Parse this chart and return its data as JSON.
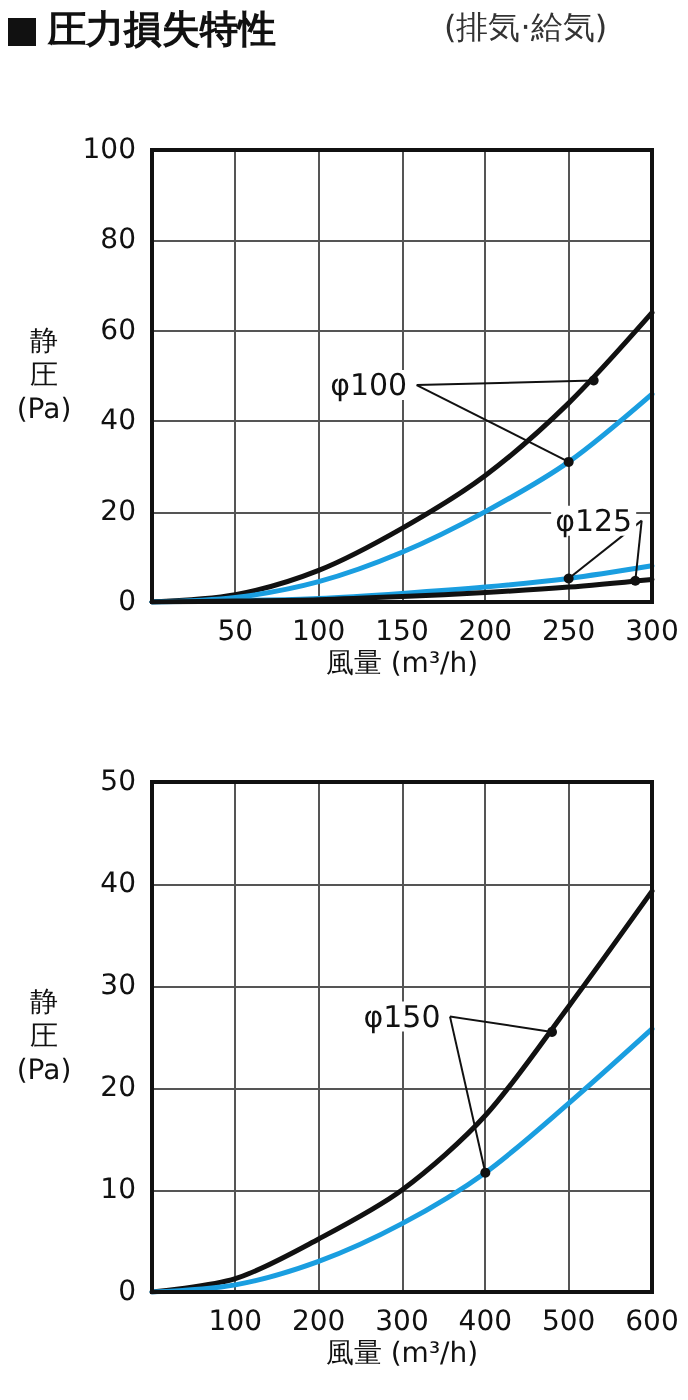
{
  "chart_data": [
    {
      "type": "line",
      "title": "圧力損失特性",
      "subtitle": "(排気·給気)",
      "xlabel": "風量 (m³/h)",
      "ylabel": "静圧(Pa)",
      "x": [
        0,
        50,
        100,
        150,
        200,
        250,
        300
      ],
      "series": [
        {
          "color": "#111111",
          "values": [
            0,
            1.6,
            7,
            16.3,
            28,
            44,
            64
          ]
        },
        {
          "color": "#1a9ee0",
          "values": [
            0,
            1,
            4.5,
            11,
            20,
            31,
            46
          ]
        },
        {
          "color": "#1a9ee0",
          "values": [
            0,
            0.3,
            0.8,
            1.9,
            3.3,
            5.2,
            8
          ]
        },
        {
          "color": "#111111",
          "values": [
            0,
            0.2,
            0.5,
            1.2,
            2.1,
            3.3,
            5
          ]
        }
      ],
      "annotations": [
        {
          "text": "φ100",
          "x": 265,
          "y": 49
        },
        {
          "text": "φ125",
          "x": 290,
          "y": 4.7
        }
      ],
      "xlim": [
        0,
        300
      ],
      "ylim": [
        0,
        100
      ],
      "xticks": [
        {
          "value": 0,
          "label": null
        },
        50,
        100,
        150,
        200,
        250,
        300
      ],
      "yticks": [
        0,
        20,
        40,
        60,
        80,
        100
      ],
      "grid": true,
      "marker": "none",
      "line_style": "solid"
    },
    {
      "type": "line",
      "xlabel": "風量 (m³/h)",
      "ylabel": "静圧(Pa)",
      "x": [
        0,
        100,
        200,
        300,
        400,
        500,
        600
      ],
      "series": [
        {
          "color": "#111111",
          "values": [
            0,
            1.3,
            5.2,
            10,
            17.3,
            28,
            39.3
          ]
        },
        {
          "color": "#1a9ee0",
          "values": [
            0,
            0.7,
            3,
            6.7,
            11.7,
            18.5,
            25.8
          ]
        }
      ],
      "annotations": [
        {
          "text": "φ150",
          "x": 480,
          "y": 25.5
        }
      ],
      "xlim": [
        0,
        600
      ],
      "ylim": [
        0,
        50
      ],
      "xticks": [
        {
          "value": 0,
          "label": null
        },
        100,
        200,
        300,
        400,
        500,
        600
      ],
      "yticks": [
        0,
        10,
        20,
        30,
        40,
        50
      ],
      "grid": true,
      "marker": "none",
      "line_style": "solid"
    }
  ]
}
